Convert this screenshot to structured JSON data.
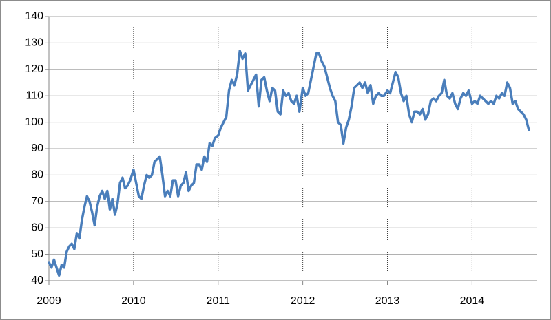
{
  "chart_data": {
    "type": "line",
    "xlim": [
      2009,
      2014.77
    ],
    "xticks": [
      2009,
      2010,
      2011,
      2012,
      2013,
      2014
    ],
    "ylim": [
      40,
      140
    ],
    "yticks": [
      40,
      50,
      60,
      70,
      80,
      90,
      100,
      110,
      120,
      130,
      140
    ],
    "grid": true,
    "series": [
      {
        "color": "#4a7ebb",
        "x": [
          2009,
          2009.03,
          2009.06,
          2009.09,
          2009.12,
          2009.15,
          2009.18,
          2009.21,
          2009.24,
          2009.27,
          2009.3,
          2009.33,
          2009.36,
          2009.39,
          2009.42,
          2009.45,
          2009.48,
          2009.51,
          2009.54,
          2009.57,
          2009.6,
          2009.63,
          2009.66,
          2009.69,
          2009.72,
          2009.75,
          2009.78,
          2009.81,
          2009.84,
          2009.87,
          2009.9,
          2009.93,
          2009.96,
          2010,
          2010.031,
          2010.062,
          2010.093,
          2010.124,
          2010.155,
          2010.186,
          2010.217,
          2010.248,
          2010.279,
          2010.31,
          2010.341,
          2010.372,
          2010.403,
          2010.434,
          2010.465,
          2010.496,
          2010.527,
          2010.558,
          2010.589,
          2010.62,
          2010.651,
          2010.682,
          2010.713,
          2010.744,
          2010.775,
          2010.806,
          2010.837,
          2010.868,
          2010.899,
          2010.93,
          2010.961,
          2011,
          2011.032,
          2011.064,
          2011.096,
          2011.128,
          2011.16,
          2011.192,
          2011.224,
          2011.256,
          2011.288,
          2011.32,
          2011.352,
          2011.384,
          2011.416,
          2011.448,
          2011.48,
          2011.512,
          2011.544,
          2011.576,
          2011.608,
          2011.64,
          2011.672,
          2011.704,
          2011.736,
          2011.768,
          2011.8,
          2011.832,
          2011.864,
          2011.896,
          2011.928,
          2011.96,
          2012,
          2012.032,
          2012.064,
          2012.096,
          2012.128,
          2012.16,
          2012.192,
          2012.224,
          2012.256,
          2012.288,
          2012.32,
          2012.352,
          2012.384,
          2012.416,
          2012.448,
          2012.48,
          2012.512,
          2012.544,
          2012.576,
          2012.608,
          2012.64,
          2012.672,
          2012.704,
          2012.736,
          2012.768,
          2012.8,
          2012.832,
          2012.864,
          2012.896,
          2012.928,
          2012.96,
          2013,
          2013.032,
          2013.064,
          2013.096,
          2013.128,
          2013.16,
          2013.192,
          2013.224,
          2013.256,
          2013.288,
          2013.32,
          2013.352,
          2013.384,
          2013.416,
          2013.448,
          2013.48,
          2013.512,
          2013.544,
          2013.576,
          2013.608,
          2013.64,
          2013.672,
          2013.704,
          2013.736,
          2013.768,
          2013.8,
          2013.832,
          2013.864,
          2013.896,
          2013.928,
          2013.96,
          2014,
          2014.032,
          2014.064,
          2014.096,
          2014.128,
          2014.16,
          2014.192,
          2014.224,
          2014.256,
          2014.288,
          2014.32,
          2014.352,
          2014.384,
          2014.416,
          2014.448,
          2014.48,
          2014.512,
          2014.544,
          2014.576,
          2014.608,
          2014.64,
          2014.672
        ],
        "values": [
          47,
          45,
          48,
          45,
          42,
          46,
          45,
          51,
          53,
          54,
          52,
          58,
          56,
          63,
          68,
          72,
          70,
          66,
          61,
          68,
          72,
          74,
          71,
          74,
          67,
          71,
          65,
          69,
          77,
          79,
          75,
          76,
          78,
          82,
          77,
          72,
          71,
          76,
          80,
          79,
          80,
          85,
          86,
          87,
          80,
          72,
          74,
          72,
          78,
          78,
          72,
          76,
          77,
          81,
          74,
          76,
          77,
          84,
          84,
          82,
          87,
          85,
          92,
          91,
          94,
          95,
          98,
          100,
          102,
          112,
          116,
          114,
          118,
          127,
          124,
          126,
          112,
          114,
          116,
          118,
          106,
          116,
          117,
          112,
          108,
          113,
          112,
          104,
          103,
          112,
          110,
          111,
          108,
          107,
          110,
          104,
          113,
          110,
          111,
          116,
          121,
          126,
          126,
          123,
          121,
          117,
          113,
          110,
          108,
          100,
          99,
          92,
          98,
          101,
          106,
          113,
          114,
          115,
          113,
          115,
          111,
          114,
          107,
          110,
          111,
          110,
          110,
          112,
          111,
          115,
          119,
          117,
          111,
          108,
          110,
          103,
          100,
          104,
          104,
          103,
          105,
          101,
          103,
          108,
          109,
          108,
          110,
          111,
          116,
          110,
          109,
          111,
          107,
          105,
          109,
          111,
          110,
          112,
          107,
          108,
          107,
          110,
          109,
          108,
          107,
          108,
          107,
          110,
          109,
          111,
          110,
          115,
          113,
          107,
          108,
          105,
          104,
          103,
          101,
          97
        ]
      }
    ]
  }
}
